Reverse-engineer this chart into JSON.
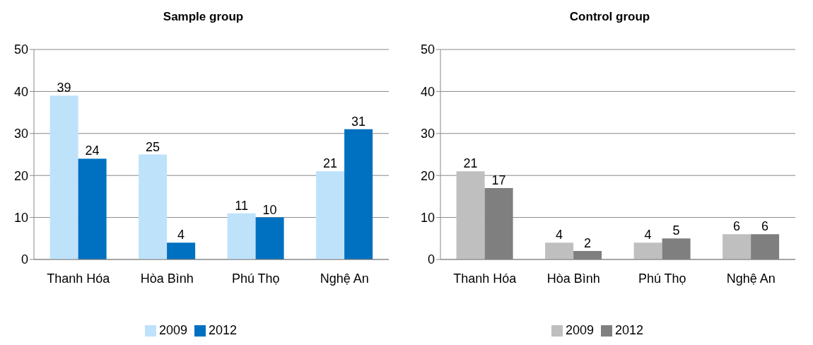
{
  "chart_data": [
    {
      "type": "bar",
      "title": "Sample group",
      "categories": [
        "Thanh Hóa",
        "Hòa Bình",
        "Phú Thọ",
        "Nghệ An"
      ],
      "series": [
        {
          "name": "2009",
          "color": "#bfe2fb",
          "values": [
            39,
            25,
            11,
            21
          ]
        },
        {
          "name": "2012",
          "color": "#0070c0",
          "values": [
            24,
            4,
            10,
            31
          ]
        }
      ],
      "ylim": [
        0,
        50
      ],
      "yticks": [
        0,
        10,
        20,
        30,
        40,
        50
      ],
      "grid": "y",
      "legend": "bottom",
      "data_labels": true
    },
    {
      "type": "bar",
      "title": "Control group",
      "categories": [
        "Thanh Hóa",
        "Hòa Bình",
        "Phú Thọ",
        "Nghệ An"
      ],
      "series": [
        {
          "name": "2009",
          "color": "#bfbfbf",
          "values": [
            21,
            4,
            4,
            6
          ]
        },
        {
          "name": "2012",
          "color": "#7f7f7f",
          "values": [
            17,
            2,
            5,
            6
          ]
        }
      ],
      "ylim": [
        0,
        50
      ],
      "yticks": [
        0,
        10,
        20,
        30,
        40,
        50
      ],
      "grid": "y",
      "legend": "bottom",
      "data_labels": true
    }
  ]
}
